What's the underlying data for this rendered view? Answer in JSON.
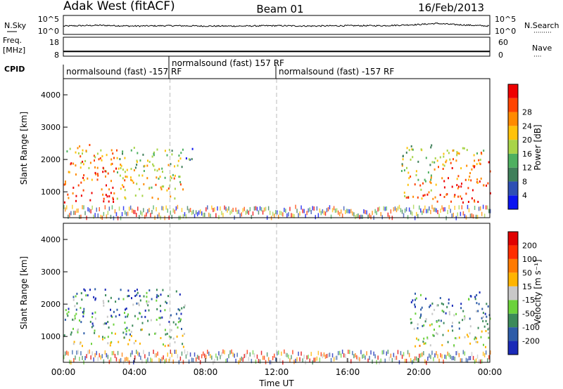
{
  "header": {
    "station": "Adak West (fitACF)",
    "beam": "Beam 01",
    "date": "16/Feb/2013"
  },
  "labels": {
    "nsky": "N.Sky",
    "nsearch": "N.Search",
    "nsearch_dots": "·········",
    "freq_line1": "Freq.",
    "freq_line2": "[MHz]",
    "nave": "Nave",
    "nave_dots": "····",
    "cpid": "CPID"
  },
  "cpid_segments": [
    {
      "label": "normalsound (fast) -157 RF",
      "start_hour": 0
    },
    {
      "label": "normalsound (fast) 157 RF",
      "start_hour": 6
    },
    {
      "label": "normalsound (fast) -157 RF",
      "start_hour": 12
    }
  ],
  "axes": {
    "noise_left_ticks": [
      "10^5",
      "10^0"
    ],
    "noise_right_ticks": [
      "10^5",
      "10^0"
    ],
    "freq_left_ticks": [
      "18",
      "8"
    ],
    "freq_right_ticks": [
      "60",
      "0"
    ],
    "range_label": "Slant Range [km]",
    "range_ticks": [
      "1000",
      "2000",
      "3000",
      "4000"
    ],
    "time_ticks": [
      "00:00",
      "04:00",
      "08:00",
      "12:00",
      "16:00",
      "20:00",
      "00:00"
    ],
    "time_label": "Time UT"
  },
  "power_colorbar": {
    "label": "Power [dB]",
    "ticks": [
      "4",
      "8",
      "12",
      "16",
      "20",
      "24",
      "28"
    ],
    "colors": [
      "#0a14f0",
      "#2e4fb4",
      "#3f7f5a",
      "#4eb060",
      "#a8d448",
      "#ffc20a",
      "#ff8a00",
      "#ff4400",
      "#ee0000"
    ]
  },
  "velocity_colorbar": {
    "label": "Velocity [m s⁻¹]",
    "ticks": [
      "200",
      "100",
      "50",
      "15",
      "-15",
      "-50",
      "-100",
      "-200"
    ],
    "colors": [
      "#1a2ab8",
      "#2d5ca8",
      "#3c8a5a",
      "#6cd23c",
      "#c8c8c8",
      "#ffb400",
      "#ff7a00",
      "#ff2d00",
      "#e00000"
    ]
  },
  "chart_data": [
    {
      "type": "line",
      "panel": "noise",
      "series": [
        {
          "name": "N.Sky",
          "x": [
            0,
            2,
            4,
            6,
            8,
            10,
            12,
            14,
            16,
            18,
            20,
            21,
            22,
            24
          ],
          "y": [
            2.2,
            2.4,
            2.2,
            2.3,
            2.2,
            2.2,
            2.3,
            2.2,
            2.3,
            2.3,
            2.6,
            2.9,
            2.6,
            2.2
          ]
        }
      ],
      "xlim": [
        0,
        24
      ],
      "ylim": [
        0,
        5
      ]
    },
    {
      "type": "line",
      "panel": "frequency",
      "series": [
        {
          "name": "Freq.",
          "x": [
            0,
            24
          ],
          "y": [
            10.5,
            10.5
          ]
        }
      ],
      "xlim": [
        0,
        24
      ],
      "ylim": [
        8,
        18
      ]
    },
    {
      "type": "heatmap",
      "panel": "power",
      "x_range_hours": [
        0,
        24
      ],
      "y_range_km": [
        200,
        4500
      ],
      "scatter_regions": [
        {
          "t0": 0.0,
          "t1": 3.0,
          "r0": 700,
          "r1": 2500,
          "level": 8
        },
        {
          "t0": 3.0,
          "t1": 6.8,
          "r0": 800,
          "r1": 2400,
          "level": 6
        },
        {
          "t0": 6.8,
          "t1": 7.3,
          "r0": 1800,
          "r1": 2400,
          "level": 3
        },
        {
          "t0": 19.0,
          "t1": 21.0,
          "r0": 800,
          "r1": 2500,
          "level": 6
        },
        {
          "t0": 21.0,
          "t1": 24.0,
          "r0": 700,
          "r1": 2400,
          "level": 8
        }
      ]
    },
    {
      "type": "heatmap",
      "panel": "velocity",
      "x_range_hours": [
        0,
        24
      ],
      "y_range_km": [
        200,
        4500
      ],
      "scatter_regions": [
        {
          "t0": 0.0,
          "t1": 6.8,
          "r0": 700,
          "r1": 1900,
          "level": 4
        },
        {
          "t0": 0.5,
          "t1": 6.8,
          "r0": 1900,
          "r1": 2500,
          "level": 3
        },
        {
          "t0": 19.5,
          "t1": 24.0,
          "r0": 700,
          "r1": 2400,
          "level": 4
        }
      ]
    }
  ]
}
